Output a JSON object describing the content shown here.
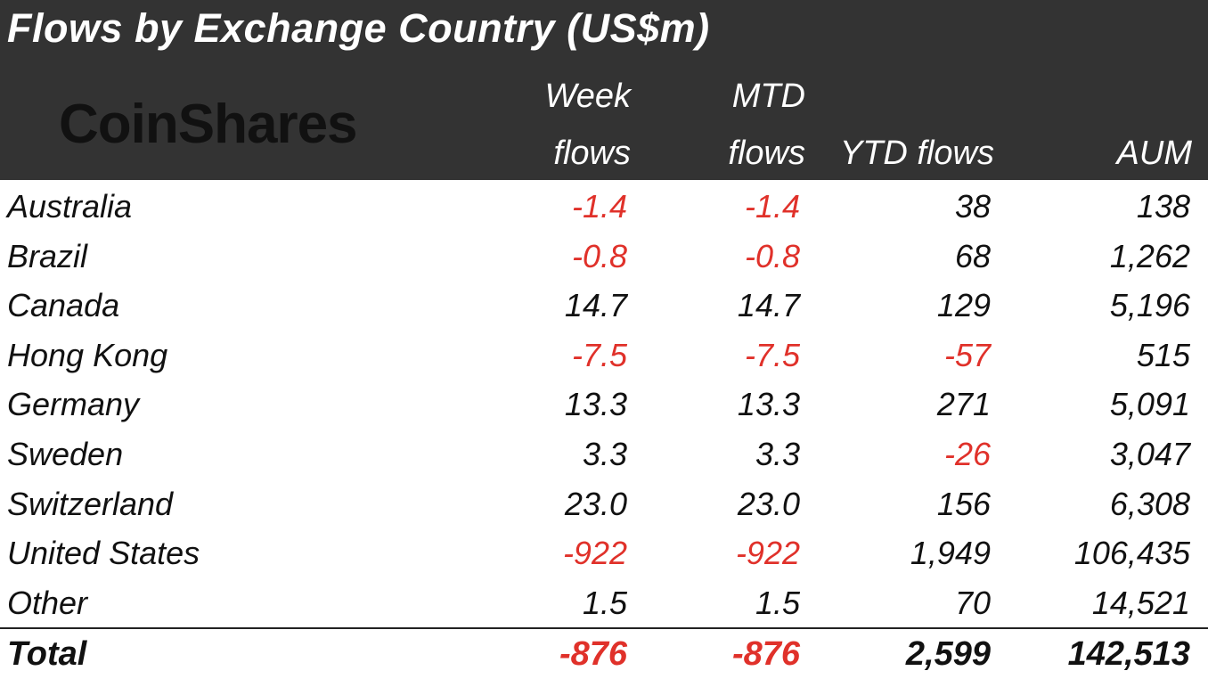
{
  "chart_data": {
    "type": "table",
    "title": "Flows by Exchange Country (US$m)",
    "logo": "CoinShares",
    "columns": [
      {
        "line1": "Week",
        "line2": "flows"
      },
      {
        "line1": "MTD",
        "line2": "flows"
      },
      {
        "line1": "",
        "line2": "YTD flows"
      },
      {
        "line1": "",
        "line2": "AUM"
      }
    ],
    "rows": [
      {
        "name": "Australia",
        "week": "-1.4",
        "mtd": "-1.4",
        "ytd": "38",
        "aum": "138"
      },
      {
        "name": "Brazil",
        "week": "-0.8",
        "mtd": "-0.8",
        "ytd": "68",
        "aum": "1,262"
      },
      {
        "name": "Canada",
        "week": "14.7",
        "mtd": "14.7",
        "ytd": "129",
        "aum": "5,196"
      },
      {
        "name": "Hong Kong",
        "week": "-7.5",
        "mtd": "-7.5",
        "ytd": "-57",
        "aum": "515"
      },
      {
        "name": "Germany",
        "week": "13.3",
        "mtd": "13.3",
        "ytd": "271",
        "aum": "5,091"
      },
      {
        "name": "Sweden",
        "week": "3.3",
        "mtd": "3.3",
        "ytd": "-26",
        "aum": "3,047"
      },
      {
        "name": "Switzerland",
        "week": "23.0",
        "mtd": "23.0",
        "ytd": "156",
        "aum": "6,308"
      },
      {
        "name": "United States",
        "week": "-922",
        "mtd": "-922",
        "ytd": "1,949",
        "aum": "106,435"
      },
      {
        "name": "Other",
        "week": "1.5",
        "mtd": "1.5",
        "ytd": "70",
        "aum": "14,521"
      }
    ],
    "total": {
      "name": "Total",
      "week": "-876",
      "mtd": "-876",
      "ytd": "2,599",
      "aum": "142,513"
    },
    "colors": {
      "header_bg": "#333333",
      "negative": "#e0312a",
      "text": "#111111"
    }
  }
}
